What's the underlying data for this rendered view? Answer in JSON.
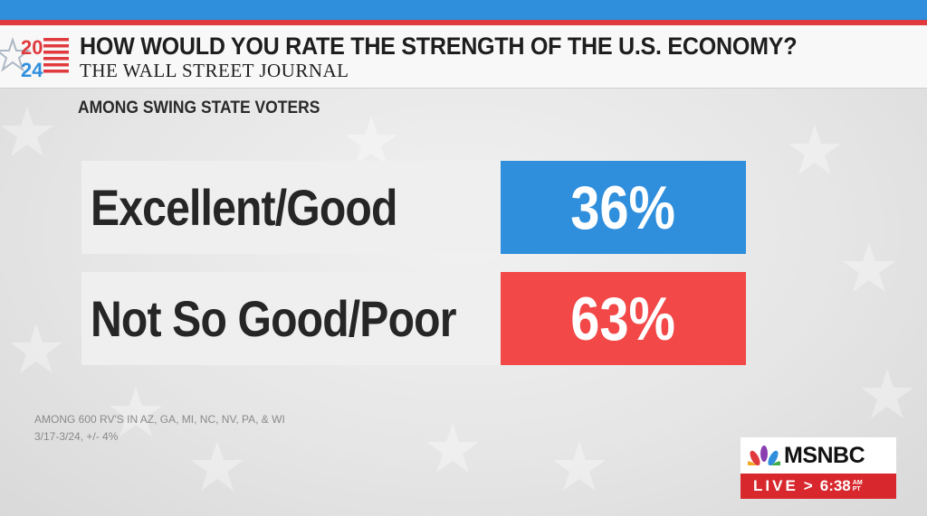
{
  "header": {
    "logo_top": "20",
    "logo_bottom": "24",
    "headline": "HOW WOULD YOU RATE THE STRENGTH OF THE U.S. ECONOMY?",
    "source": "THE WALL STREET JOURNAL",
    "subhead": "AMONG SWING STATE VOTERS"
  },
  "chart_data": {
    "type": "table",
    "title": "HOW WOULD YOU RATE THE STRENGTH OF THE U.S. ECONOMY?",
    "subtitle": "AMONG SWING STATE VOTERS",
    "rows": [
      {
        "label": "Excellent/Good",
        "value": 36,
        "display": "36%",
        "color": "#2f8fdc"
      },
      {
        "label": "Not So Good/Poor",
        "value": 63,
        "display": "63%",
        "color": "#f24848"
      }
    ]
  },
  "footnotes": [
    "AMONG 600 RV'S IN AZ, GA, MI, NC, NV, PA, & WI",
    "3/17-3/24, +/- 4%"
  ],
  "network": {
    "name": "MSNBC",
    "live_label": "LIVE",
    "arrow": ">",
    "time": "6:38",
    "ampm": "AM",
    "zone": "PT"
  },
  "colors": {
    "accent_blue": "#2f8fdc",
    "accent_red": "#e03a3e",
    "live_red": "#d8282e"
  }
}
